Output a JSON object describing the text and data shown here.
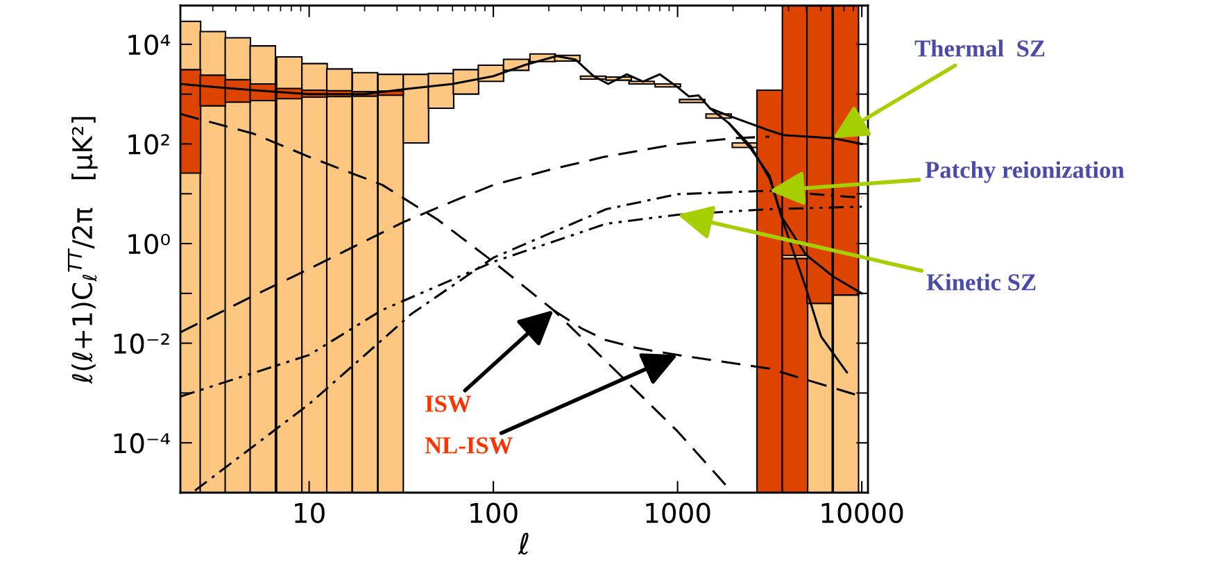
{
  "chart_data": {
    "type": "bar",
    "xlabel": "ℓ",
    "ylabel": "ℓ(ℓ+1)C$_{ℓ}$$^{TT}$/2π   [μK²]",
    "log": "xy",
    "xlim": [
      2,
      10800
    ],
    "xticks": [
      10,
      100,
      1000,
      10000
    ],
    "ylim": [
      1e-05,
      60000
    ],
    "yticks": [
      {
        "value": 0.0001,
        "label": "10⁻⁴"
      },
      {
        "value": 0.01,
        "label": "10⁻²"
      },
      {
        "value": 1,
        "label": "10⁰"
      },
      {
        "value": 100,
        "label": "10²"
      },
      {
        "value": 10000,
        "label": "10⁴"
      }
    ],
    "grid": false,
    "legend": false,
    "series": [
      {
        "color": "#fdc681",
        "x": [
          2.2,
          3.0,
          4.1,
          5.6,
          7.8,
          10.7,
          14.6,
          20.1,
          27.7,
          38,
          52,
          71,
          97,
          133,
          185,
          252,
          348,
          479,
          638,
          885,
          1200,
          1670,
          2320,
          5900,
          8200
        ],
        "base": [
          1e-05,
          1e-05,
          1e-05,
          1e-05,
          1e-05,
          1e-05,
          1e-05,
          1e-05,
          1e-05,
          105,
          520,
          1000,
          1800,
          3000,
          4500,
          4600,
          2000,
          1900,
          1600,
          1400,
          680,
          330,
          85,
          1e-05,
          1e-05
        ],
        "values": [
          29000,
          18000,
          13500,
          9300,
          5600,
          4100,
          3200,
          2700,
          2500,
          2395,
          2080,
          2100,
          2000,
          2000,
          1900,
          1400,
          300,
          300,
          200,
          200,
          100,
          70,
          20,
          0.063,
          0.093
        ]
      },
      {
        "color": "#dd4400",
        "x": [
          2.2,
          3.0,
          4.1,
          5.6,
          7.8,
          10.7,
          14.6,
          20.1,
          27.7,
          3160,
          4340,
          5900,
          8200
        ],
        "base": [
          26,
          580,
          690,
          740,
          810,
          870,
          890,
          910,
          950,
          1e-05,
          1e-05,
          0.063,
          0.093
        ],
        "values": [
          3074,
          1820,
          1260,
          860,
          490,
          330,
          280,
          210,
          200,
          1200,
          59900,
          59800,
          59800
        ]
      },
      {
        "color": "#fdc681",
        "x": [
          4340
        ],
        "base": [
          0.5
        ],
        "values": [
          0.08
        ]
      },
      {
        "type": "line",
        "color": "#000000",
        "line_style": "solid",
        "x": [
          2,
          3,
          5,
          10,
          20,
          33,
          60,
          100,
          150,
          220,
          280,
          350,
          420,
          530,
          650,
          800,
          1000,
          1150,
          1300,
          1500,
          1900,
          2500,
          3160,
          3660,
          4970,
          6970,
          10000
        ],
        "values": [
          1600,
          1400,
          1200,
          1000,
          1000,
          1260,
          1600,
          2300,
          3900,
          5800,
          4900,
          2300,
          1600,
          2500,
          1780,
          2500,
          1380,
          900,
          940,
          520,
          260,
          80,
          23,
          3.5,
          0.6,
          0.22,
          0.1
        ]
      },
      {
        "type": "line",
        "color": "#000000",
        "line_style": "solid",
        "x": [
          1900,
          2500,
          3160,
          3770,
          4970,
          6020,
          8300
        ],
        "values": [
          260,
          90,
          20,
          2.5,
          0.13,
          0.0135,
          0.0026
        ]
      },
      {
        "type": "line",
        "color": "#000000",
        "line_style": "solid",
        "x": [
          1500,
          1890,
          3160,
          3770,
          6970,
          10000
        ],
        "values": [
          520,
          370,
          185,
          150,
          130,
          100
        ]
      },
      {
        "type": "line",
        "color": "#000000",
        "line_style": "dashed",
        "x": [
          2,
          5,
          10,
          32.5,
          60,
          100,
          200,
          400,
          1000,
          2000,
          3150
        ],
        "values": [
          0.0165,
          0.09,
          0.31,
          2.7,
          7,
          15,
          30,
          55,
          100,
          130,
          140
        ]
      },
      {
        "type": "line",
        "color": "#000000",
        "line_style": "dashed",
        "x": [
          2,
          5,
          10,
          25,
          50,
          100,
          212,
          500,
          1000,
          1900
        ],
        "values": [
          400,
          160,
          55,
          15,
          3,
          0.43,
          0.046,
          0.0021,
          0.00017,
          1.2e-05
        ]
      },
      {
        "type": "line",
        "color": "#000000",
        "line_style": "dashed",
        "x": [
          212,
          300,
          410,
          600,
          1000,
          3150,
          10000
        ],
        "values": [
          0.046,
          0.02,
          0.0115,
          0.008,
          0.0058,
          0.0031,
          0.00085
        ]
      },
      {
        "type": "line",
        "color": "#000000",
        "line_style": "dashdot",
        "x": [
          2.4,
          10,
          24.8,
          36,
          100,
          410,
          1000,
          3150,
          10000
        ],
        "values": [
          1.1e-05,
          0.0006,
          0.0115,
          0.039,
          0.52,
          4.9,
          9.8,
          11.5,
          8.3
        ]
      },
      {
        "type": "line",
        "color": "#000000",
        "line_style": "dashdotdot",
        "x": [
          2,
          10,
          24.8,
          100,
          410,
          1000,
          3150,
          10000
        ],
        "values": [
          0.00085,
          0.0058,
          0.046,
          0.43,
          2.5,
          3.8,
          4.9,
          5.5
        ]
      }
    ],
    "annotations": [
      {
        "text": "Thermal  SZ",
        "x": 6970,
        "y": 130
      },
      {
        "text": "Patchy reionization",
        "x": 3150,
        "y": 11.5
      },
      {
        "text": "Kinetic SZ",
        "x": 1000,
        "y": 3.8
      },
      {
        "text": "ISW",
        "x": 212,
        "y": 0.046
      },
      {
        "text": "NL-ISW",
        "x": 1000,
        "y": 0.0058
      }
    ]
  }
}
